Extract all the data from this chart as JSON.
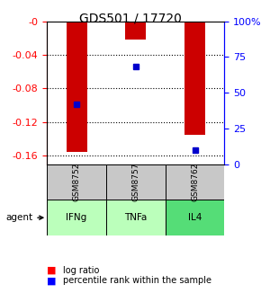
{
  "title": "GDS501 / 17720",
  "samples": [
    "GSM8752",
    "GSM8757",
    "GSM8762"
  ],
  "agents": [
    "IFNg",
    "TNFa",
    "IL4"
  ],
  "log_ratios": [
    -0.155,
    -0.022,
    -0.135
  ],
  "percentile_ranks": [
    42,
    68,
    10
  ],
  "left_ylim": [
    -0.17,
    0.0
  ],
  "left_yticks": [
    0,
    -0.04,
    -0.08,
    -0.12,
    -0.16
  ],
  "right_ylim": [
    0,
    100
  ],
  "right_yticks": [
    0,
    25,
    50,
    75,
    100
  ],
  "right_yticklabels": [
    "0",
    "25",
    "50",
    "75",
    "100%"
  ],
  "bar_color": "#cc0000",
  "dot_color": "#0000cc",
  "agent_colors": [
    "#ccffcc",
    "#99ff99",
    "#66ee88"
  ],
  "sample_bg": "#cccccc",
  "agent_row_colors": [
    "#bbffbb",
    "#bbffbb",
    "#66dd88"
  ]
}
